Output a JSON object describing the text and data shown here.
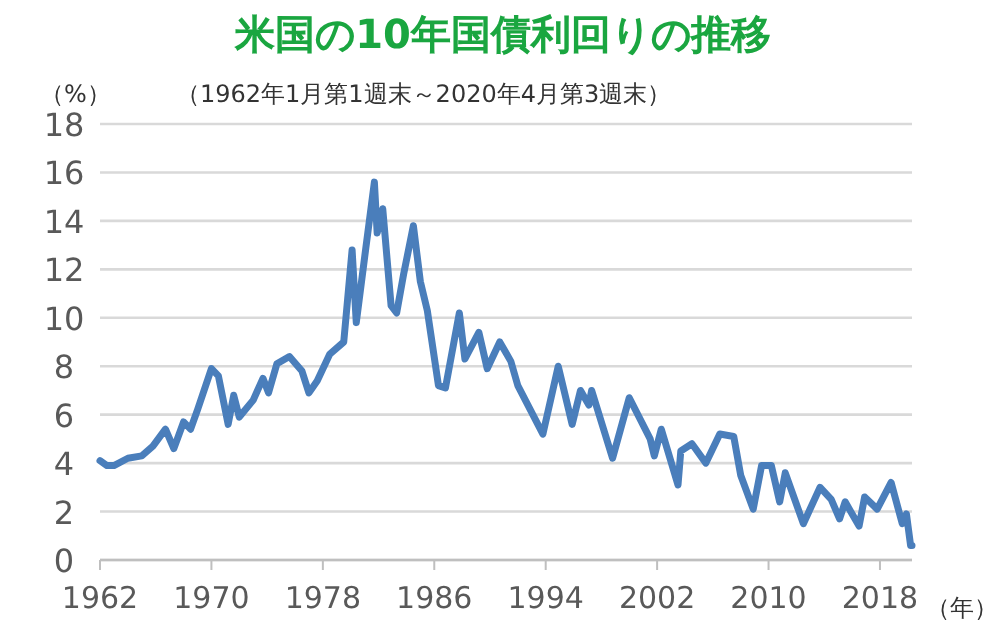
{
  "chart_data": {
    "type": "line",
    "title": "米国の10年国債利回りの推移",
    "subtitle": "（1962年1月第1週末～2020年4月第3週末）",
    "ylabel": "（%）",
    "xlabel": "（年）",
    "x": [
      1962,
      1962.5,
      1963,
      1964,
      1965,
      1965.8,
      1966.7,
      1967.3,
      1968,
      1968.5,
      1969,
      1970,
      1970.5,
      1971.2,
      1971.6,
      1972,
      1973,
      1973.7,
      1974.1,
      1974.7,
      1975.6,
      1976.5,
      1977,
      1977.6,
      1978.5,
      1979.5,
      1980.1,
      1980.4,
      1981,
      1981.7,
      1981.9,
      1982.3,
      1982.9,
      1983.3,
      1983.8,
      1984.5,
      1985,
      1985.5,
      1986.3,
      1986.8,
      1987.8,
      1988.2,
      1989.2,
      1989.8,
      1990.7,
      1991.5,
      1992,
      1993.8,
      1994.9,
      1995.9,
      1996.5,
      1997.1,
      1997.3,
      1998.8,
      2000,
      2001.5,
      2001.8,
      2002.3,
      2003.5,
      2003.7,
      2004.5,
      2005.5,
      2006.5,
      2007.5,
      2008,
      2008.9,
      2009.5,
      2010.2,
      2010.8,
      2011.2,
      2012.5,
      2013.7,
      2014.5,
      2015.1,
      2015.5,
      2016.5,
      2016.9,
      2017.8,
      2018.8,
      2019.6,
      2019.9,
      2020.2,
      2020.3
    ],
    "series": [
      {
        "color": "#4a7ebb",
        "values": [
          4.1,
          3.9,
          3.9,
          4.2,
          4.3,
          4.7,
          5.4,
          4.6,
          5.7,
          5.4,
          6.2,
          7.9,
          7.6,
          5.6,
          6.8,
          5.9,
          6.6,
          7.5,
          6.9,
          8.1,
          8.4,
          7.8,
          6.9,
          7.4,
          8.5,
          9.0,
          12.8,
          9.8,
          12.5,
          15.6,
          13.5,
          14.5,
          10.5,
          10.2,
          11.8,
          13.8,
          11.5,
          10.3,
          7.2,
          7.1,
          10.2,
          8.3,
          9.4,
          7.9,
          9.0,
          8.2,
          7.2,
          5.2,
          8.0,
          5.6,
          7.0,
          6.4,
          7.0,
          4.2,
          6.7,
          5.0,
          4.3,
          5.4,
          3.1,
          4.5,
          4.8,
          4.0,
          5.2,
          5.1,
          3.5,
          2.1,
          3.9,
          3.9,
          2.4,
          3.6,
          1.5,
          3.0,
          2.5,
          1.7,
          2.4,
          1.4,
          2.6,
          2.1,
          3.2,
          1.5,
          1.9,
          0.6,
          0.6
        ]
      }
    ],
    "xlim": [
      1962,
      2020.3
    ],
    "xticks": [
      1962,
      1970,
      1978,
      1986,
      1994,
      2002,
      2010,
      2018
    ],
    "ylim": [
      0,
      18
    ],
    "yticks": [
      0,
      2,
      4,
      6,
      8,
      10,
      12,
      14,
      16,
      18
    ],
    "grid": "y",
    "line_style": "solid"
  }
}
